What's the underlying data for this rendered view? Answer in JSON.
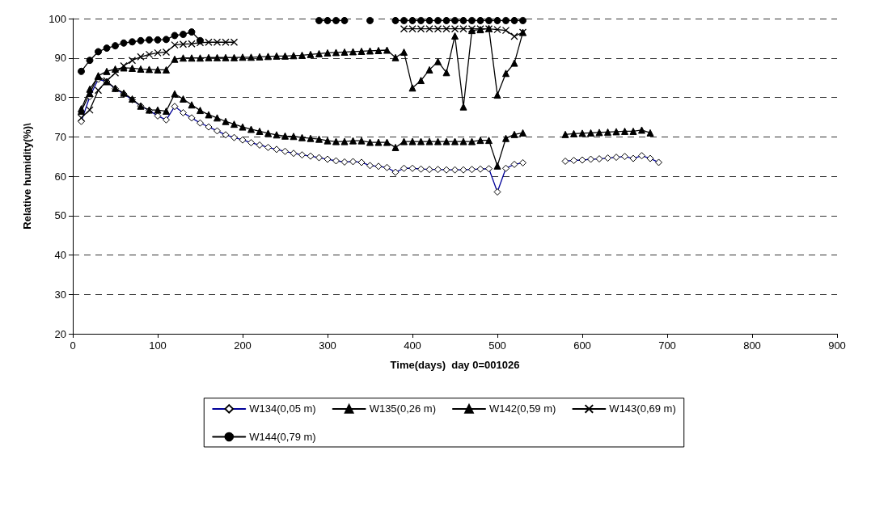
{
  "chart_data": {
    "type": "line",
    "xlabel": "Time(days)  day 0=001026",
    "ylabel": "Relative humidity(%)\\",
    "xlim": [
      0,
      900
    ],
    "xticks": [
      0,
      100,
      200,
      300,
      400,
      500,
      600,
      700,
      800,
      900
    ],
    "ylim": [
      20,
      100
    ],
    "yticks": [
      20,
      30,
      40,
      50,
      60,
      70,
      80,
      90,
      100
    ],
    "grid": "y",
    "legend": "bottom",
    "line_style": "solid",
    "series": [
      {
        "name": "W134(0,05 m)",
        "color": "#000099",
        "marker": "diamond",
        "x": [
          10,
          20,
          30,
          40,
          50,
          60,
          70,
          80,
          90,
          100,
          110,
          120,
          130,
          140,
          150,
          160,
          170,
          180,
          190,
          200,
          210,
          220,
          230,
          240,
          250,
          260,
          270,
          280,
          290,
          300,
          310,
          320,
          330,
          340,
          350,
          360,
          370,
          380,
          390,
          400,
          410,
          420,
          430,
          440,
          450,
          460,
          470,
          480,
          490,
          500,
          510,
          520,
          530,
          550,
          580,
          590,
          600,
          610,
          620,
          630,
          640,
          650,
          660,
          670,
          680,
          690
        ],
        "values": [
          73.9,
          80.2,
          84.6,
          84.0,
          82.2,
          80.9,
          79.4,
          77.8,
          76.7,
          75.3,
          74.3,
          77.7,
          76.1,
          74.8,
          73.5,
          72.5,
          71.5,
          70.5,
          69.8,
          69.2,
          68.5,
          67.9,
          67.3,
          66.8,
          66.3,
          65.8,
          65.4,
          65.1,
          64.7,
          64.3,
          63.9,
          63.6,
          63.7,
          63.5,
          62.7,
          62.5,
          62.2,
          61.0,
          62.0,
          62.0,
          61.8,
          61.7,
          61.7,
          61.6,
          61.6,
          61.6,
          61.7,
          61.8,
          61.9,
          56.0,
          62.0,
          63.0,
          63.4,
          null,
          63.8,
          64.0,
          64.1,
          64.3,
          64.4,
          64.6,
          64.8,
          65.0,
          64.5,
          65.2,
          64.5,
          63.5
        ]
      },
      {
        "name": "W135(0,26 m)",
        "color": "#000000",
        "marker": "triangle",
        "x": [
          10,
          20,
          30,
          40,
          50,
          60,
          70,
          80,
          90,
          100,
          110,
          120,
          130,
          140,
          150,
          160,
          170,
          180,
          190,
          200,
          210,
          220,
          230,
          240,
          250,
          260,
          270,
          280,
          290,
          300,
          310,
          320,
          330,
          340,
          350,
          360,
          370,
          380,
          390,
          400,
          410,
          420,
          430,
          440,
          450,
          460,
          470,
          480,
          490,
          500,
          510,
          520,
          530,
          550,
          580,
          590,
          600,
          610,
          620,
          630,
          640,
          650,
          660,
          670,
          680
        ],
        "values": [
          77.1,
          82.1,
          85.3,
          84.0,
          82.3,
          81.1,
          79.6,
          77.8,
          76.8,
          76.8,
          76.5,
          80.9,
          79.6,
          78.1,
          76.7,
          75.6,
          74.8,
          73.9,
          73.2,
          72.5,
          71.9,
          71.4,
          70.9,
          70.5,
          70.2,
          70.1,
          69.8,
          69.6,
          69.4,
          69.0,
          68.8,
          68.8,
          69.0,
          69.0,
          68.6,
          68.6,
          68.6,
          67.3,
          68.8,
          68.8,
          68.8,
          68.8,
          68.8,
          68.8,
          68.8,
          68.8,
          68.8,
          69.1,
          69.1,
          62.6,
          69.6,
          70.6,
          71.0,
          null,
          70.6,
          70.8,
          70.9,
          71.0,
          71.1,
          71.2,
          71.3,
          71.4,
          71.4,
          71.7,
          71.0
        ]
      },
      {
        "name": "W142(0,59 m)",
        "color": "#000000",
        "marker": "triangle",
        "x": [
          10,
          20,
          30,
          40,
          50,
          60,
          70,
          80,
          90,
          100,
          110,
          120,
          130,
          140,
          150,
          160,
          170,
          180,
          190,
          200,
          210,
          220,
          230,
          240,
          250,
          260,
          270,
          280,
          290,
          300,
          310,
          320,
          330,
          340,
          350,
          360,
          370,
          380,
          390,
          400,
          410,
          420,
          430,
          440,
          450,
          460,
          470,
          480,
          490,
          500,
          510,
          520,
          530
        ],
        "values": [
          76.5,
          81.0,
          85.5,
          86.6,
          87.2,
          87.5,
          87.4,
          87.2,
          87.1,
          87.0,
          87.0,
          89.7,
          90.0,
          90.0,
          90.0,
          90.1,
          90.1,
          90.1,
          90.1,
          90.2,
          90.2,
          90.3,
          90.4,
          90.5,
          90.5,
          90.6,
          90.7,
          90.9,
          91.1,
          91.3,
          91.4,
          91.5,
          91.6,
          91.7,
          91.8,
          91.9,
          92.0,
          90.1,
          91.5,
          82.4,
          84.3,
          87.0,
          89.1,
          86.3,
          95.6,
          77.6,
          97.0,
          97.2,
          97.5,
          80.6,
          86.1,
          88.7,
          96.5
        ]
      },
      {
        "name": "W143(0,69 m)",
        "color": "#000000",
        "marker": "cross",
        "x": [
          10,
          20,
          30,
          40,
          50,
          60,
          70,
          80,
          90,
          100,
          110,
          120,
          130,
          140,
          150,
          160,
          170,
          180,
          190,
          290,
          390,
          400,
          410,
          420,
          430,
          440,
          450,
          460,
          470,
          480,
          490,
          500,
          510,
          520,
          530
        ],
        "values": [
          74.8,
          76.8,
          81.8,
          84.2,
          86.2,
          88.0,
          89.4,
          90.3,
          90.9,
          91.3,
          91.5,
          93.3,
          93.5,
          93.6,
          93.9,
          94.0,
          94.0,
          94.0,
          94.0,
          null,
          97.4,
          97.4,
          97.4,
          97.4,
          97.4,
          97.4,
          97.4,
          97.4,
          97.4,
          97.4,
          97.4,
          97.2,
          97.0,
          95.5,
          96.5
        ]
      },
      {
        "name": "W144(0,79 m)",
        "color": "#000000",
        "marker": "circle",
        "x": [
          10,
          20,
          30,
          40,
          50,
          60,
          70,
          80,
          90,
          100,
          110,
          120,
          130,
          140,
          150,
          220,
          290,
          300,
          310,
          320,
          335,
          350,
          365,
          380,
          390,
          400,
          410,
          420,
          430,
          440,
          450,
          460,
          470,
          480,
          490,
          500,
          510,
          520,
          530
        ],
        "values": [
          86.6,
          89.4,
          91.6,
          92.5,
          93.1,
          93.8,
          94.1,
          94.4,
          94.6,
          94.6,
          94.7,
          95.7,
          96.0,
          96.6,
          94.4,
          null,
          99.5,
          99.5,
          99.5,
          99.5,
          null,
          99.5,
          null,
          99.5,
          99.5,
          99.5,
          99.5,
          99.5,
          99.5,
          99.5,
          99.5,
          99.5,
          99.5,
          99.5,
          99.5,
          99.5,
          99.5,
          99.5,
          99.5
        ]
      }
    ]
  }
}
